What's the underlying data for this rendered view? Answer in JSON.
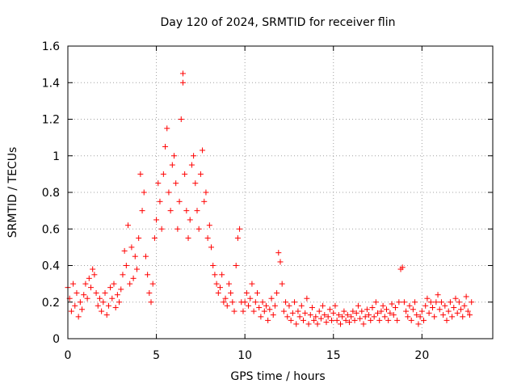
{
  "chart_data": {
    "type": "scatter",
    "title": "Day 120 of 2024, SRMTID for receiver flin",
    "xlabel": "GPS time / hours",
    "ylabel": "SRMTID / TECUs",
    "xlim": [
      0,
      24
    ],
    "ylim": [
      0,
      1.6
    ],
    "xticks": [
      0,
      5,
      10,
      15,
      20
    ],
    "xtick_labels": [
      "0",
      "5",
      "10",
      "15",
      "20"
    ],
    "yticks": [
      0,
      0.2,
      0.4,
      0.6,
      0.8,
      1,
      1.2,
      1.4,
      1.6
    ],
    "ytick_labels": [
      "0",
      "0.2",
      "0.4",
      "0.6",
      "0.8",
      "1",
      "1.2",
      "1.4",
      "1.6"
    ],
    "grid": true,
    "marker": "+",
    "color": "#ff0000",
    "series": [
      {
        "name": "flin",
        "points": [
          [
            0.0,
            0.28
          ],
          [
            0.1,
            0.22
          ],
          [
            0.2,
            0.15
          ],
          [
            0.3,
            0.3
          ],
          [
            0.4,
            0.18
          ],
          [
            0.5,
            0.25
          ],
          [
            0.6,
            0.12
          ],
          [
            0.7,
            0.2
          ],
          [
            0.8,
            0.16
          ],
          [
            0.9,
            0.24
          ],
          [
            1.0,
            0.3
          ],
          [
            1.1,
            0.22
          ],
          [
            1.2,
            0.33
          ],
          [
            1.3,
            0.28
          ],
          [
            1.4,
            0.38
          ],
          [
            1.5,
            0.35
          ],
          [
            1.6,
            0.25
          ],
          [
            1.7,
            0.18
          ],
          [
            1.8,
            0.22
          ],
          [
            1.9,
            0.15
          ],
          [
            2.0,
            0.2
          ],
          [
            2.1,
            0.25
          ],
          [
            2.2,
            0.13
          ],
          [
            2.3,
            0.18
          ],
          [
            2.4,
            0.28
          ],
          [
            2.5,
            0.22
          ],
          [
            2.6,
            0.3
          ],
          [
            2.7,
            0.17
          ],
          [
            2.8,
            0.24
          ],
          [
            2.9,
            0.2
          ],
          [
            3.0,
            0.27
          ],
          [
            3.1,
            0.35
          ],
          [
            3.2,
            0.48
          ],
          [
            3.3,
            0.4
          ],
          [
            3.4,
            0.62
          ],
          [
            3.5,
            0.3
          ],
          [
            3.6,
            0.5
          ],
          [
            3.7,
            0.33
          ],
          [
            3.8,
            0.45
          ],
          [
            3.9,
            0.38
          ],
          [
            4.0,
            0.55
          ],
          [
            4.1,
            0.9
          ],
          [
            4.2,
            0.7
          ],
          [
            4.3,
            0.8
          ],
          [
            4.4,
            0.45
          ],
          [
            4.5,
            0.35
          ],
          [
            4.6,
            0.25
          ],
          [
            4.7,
            0.2
          ],
          [
            4.8,
            0.3
          ],
          [
            4.9,
            0.55
          ],
          [
            5.0,
            0.65
          ],
          [
            5.1,
            0.85
          ],
          [
            5.2,
            0.75
          ],
          [
            5.3,
            0.6
          ],
          [
            5.4,
            0.9
          ],
          [
            5.5,
            1.05
          ],
          [
            5.6,
            1.15
          ],
          [
            5.7,
            0.8
          ],
          [
            5.8,
            0.7
          ],
          [
            5.9,
            0.95
          ],
          [
            6.0,
            1.0
          ],
          [
            6.1,
            0.85
          ],
          [
            6.2,
            0.6
          ],
          [
            6.3,
            0.75
          ],
          [
            6.4,
            1.2
          ],
          [
            6.5,
            1.45
          ],
          [
            6.5,
            1.4
          ],
          [
            6.6,
            0.9
          ],
          [
            6.7,
            0.7
          ],
          [
            6.8,
            0.55
          ],
          [
            6.9,
            0.65
          ],
          [
            7.0,
            0.95
          ],
          [
            7.1,
            1.0
          ],
          [
            7.2,
            0.85
          ],
          [
            7.3,
            0.7
          ],
          [
            7.4,
            0.6
          ],
          [
            7.5,
            0.9
          ],
          [
            7.6,
            1.03
          ],
          [
            7.7,
            0.75
          ],
          [
            7.8,
            0.8
          ],
          [
            7.9,
            0.55
          ],
          [
            8.0,
            0.62
          ],
          [
            8.1,
            0.5
          ],
          [
            8.2,
            0.4
          ],
          [
            8.3,
            0.35
          ],
          [
            8.4,
            0.3
          ],
          [
            8.5,
            0.25
          ],
          [
            8.6,
            0.28
          ],
          [
            8.7,
            0.35
          ],
          [
            8.8,
            0.2
          ],
          [
            8.9,
            0.22
          ],
          [
            9.0,
            0.18
          ],
          [
            9.1,
            0.3
          ],
          [
            9.2,
            0.25
          ],
          [
            9.3,
            0.2
          ],
          [
            9.4,
            0.15
          ],
          [
            9.5,
            0.4
          ],
          [
            9.6,
            0.55
          ],
          [
            9.7,
            0.6
          ],
          [
            9.8,
            0.2
          ],
          [
            9.9,
            0.15
          ],
          [
            10.0,
            0.2
          ],
          [
            10.1,
            0.25
          ],
          [
            10.2,
            0.18
          ],
          [
            10.3,
            0.22
          ],
          [
            10.4,
            0.3
          ],
          [
            10.5,
            0.15
          ],
          [
            10.6,
            0.2
          ],
          [
            10.7,
            0.25
          ],
          [
            10.8,
            0.17
          ],
          [
            10.9,
            0.12
          ],
          [
            11.0,
            0.2
          ],
          [
            11.1,
            0.15
          ],
          [
            11.2,
            0.18
          ],
          [
            11.3,
            0.1
          ],
          [
            11.4,
            0.16
          ],
          [
            11.5,
            0.22
          ],
          [
            11.6,
            0.13
          ],
          [
            11.7,
            0.18
          ],
          [
            11.8,
            0.25
          ],
          [
            11.9,
            0.47
          ],
          [
            12.0,
            0.42
          ],
          [
            12.1,
            0.3
          ],
          [
            12.2,
            0.15
          ],
          [
            12.3,
            0.2
          ],
          [
            12.4,
            0.12
          ],
          [
            12.5,
            0.18
          ],
          [
            12.6,
            0.1
          ],
          [
            12.7,
            0.14
          ],
          [
            12.8,
            0.2
          ],
          [
            12.9,
            0.08
          ],
          [
            13.0,
            0.15
          ],
          [
            13.1,
            0.12
          ],
          [
            13.2,
            0.18
          ],
          [
            13.3,
            0.1
          ],
          [
            13.4,
            0.14
          ],
          [
            13.5,
            0.22
          ],
          [
            13.6,
            0.08
          ],
          [
            13.7,
            0.13
          ],
          [
            13.8,
            0.17
          ],
          [
            13.9,
            0.1
          ],
          [
            14.0,
            0.12
          ],
          [
            14.1,
            0.08
          ],
          [
            14.2,
            0.15
          ],
          [
            14.3,
            0.11
          ],
          [
            14.4,
            0.18
          ],
          [
            14.5,
            0.13
          ],
          [
            14.6,
            0.09
          ],
          [
            14.7,
            0.12
          ],
          [
            14.8,
            0.16
          ],
          [
            14.9,
            0.1
          ],
          [
            15.0,
            0.14
          ],
          [
            15.1,
            0.18
          ],
          [
            15.2,
            0.1
          ],
          [
            15.3,
            0.13
          ],
          [
            15.4,
            0.08
          ],
          [
            15.5,
            0.12
          ],
          [
            15.6,
            0.15
          ],
          [
            15.7,
            0.1
          ],
          [
            15.8,
            0.13
          ],
          [
            15.9,
            0.09
          ],
          [
            16.0,
            0.12
          ],
          [
            16.1,
            0.15
          ],
          [
            16.2,
            0.1
          ],
          [
            16.3,
            0.14
          ],
          [
            16.4,
            0.18
          ],
          [
            16.5,
            0.11
          ],
          [
            16.6,
            0.15
          ],
          [
            16.7,
            0.08
          ],
          [
            16.8,
            0.12
          ],
          [
            16.9,
            0.16
          ],
          [
            17.0,
            0.13
          ],
          [
            17.1,
            0.1
          ],
          [
            17.2,
            0.17
          ],
          [
            17.3,
            0.12
          ],
          [
            17.4,
            0.2
          ],
          [
            17.5,
            0.14
          ],
          [
            17.6,
            0.1
          ],
          [
            17.7,
            0.15
          ],
          [
            17.8,
            0.18
          ],
          [
            17.9,
            0.12
          ],
          [
            18.0,
            0.16
          ],
          [
            18.1,
            0.1
          ],
          [
            18.2,
            0.14
          ],
          [
            18.3,
            0.19
          ],
          [
            18.4,
            0.13
          ],
          [
            18.5,
            0.17
          ],
          [
            18.6,
            0.1
          ],
          [
            18.7,
            0.2
          ],
          [
            18.8,
            0.38
          ],
          [
            18.9,
            0.39
          ],
          [
            19.0,
            0.2
          ],
          [
            19.1,
            0.15
          ],
          [
            19.2,
            0.12
          ],
          [
            19.3,
            0.18
          ],
          [
            19.4,
            0.1
          ],
          [
            19.5,
            0.16
          ],
          [
            19.6,
            0.2
          ],
          [
            19.7,
            0.13
          ],
          [
            19.8,
            0.08
          ],
          [
            19.9,
            0.12
          ],
          [
            20.0,
            0.15
          ],
          [
            20.1,
            0.1
          ],
          [
            20.2,
            0.18
          ],
          [
            20.3,
            0.22
          ],
          [
            20.4,
            0.14
          ],
          [
            20.5,
            0.2
          ],
          [
            20.6,
            0.17
          ],
          [
            20.7,
            0.12
          ],
          [
            20.8,
            0.2
          ],
          [
            20.9,
            0.24
          ],
          [
            21.0,
            0.16
          ],
          [
            21.1,
            0.2
          ],
          [
            21.2,
            0.13
          ],
          [
            21.3,
            0.18
          ],
          [
            21.4,
            0.1
          ],
          [
            21.5,
            0.15
          ],
          [
            21.6,
            0.2
          ],
          [
            21.7,
            0.12
          ],
          [
            21.8,
            0.17
          ],
          [
            21.9,
            0.22
          ],
          [
            22.0,
            0.14
          ],
          [
            22.1,
            0.2
          ],
          [
            22.2,
            0.16
          ],
          [
            22.3,
            0.12
          ],
          [
            22.4,
            0.18
          ],
          [
            22.5,
            0.23
          ],
          [
            22.6,
            0.15
          ],
          [
            22.7,
            0.13
          ],
          [
            22.8,
            0.2
          ]
        ]
      }
    ]
  }
}
